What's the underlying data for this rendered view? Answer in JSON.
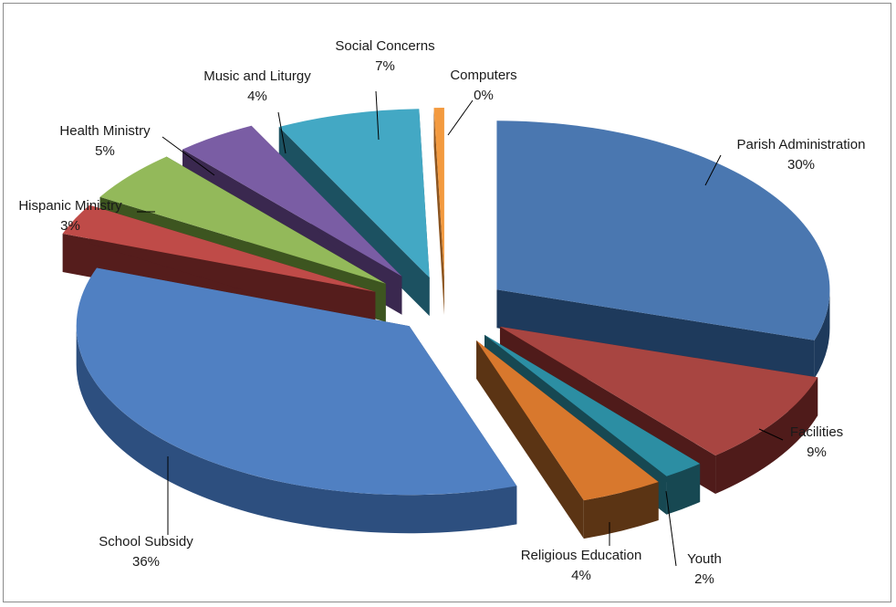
{
  "chart_data": {
    "type": "pie",
    "title": "",
    "legend": "none",
    "slices": [
      {
        "label": "Parish Administration",
        "value": 30,
        "value_label": "30%",
        "color": "#4a77b0",
        "side": "#1e3a5c"
      },
      {
        "label": "Facilities",
        "value": 9,
        "value_label": "9%",
        "color": "#a84541",
        "side": "#4f1b1a"
      },
      {
        "label": "Youth",
        "value": 2,
        "value_label": "2%",
        "color": "#2c8ea3",
        "side": "#174852"
      },
      {
        "label": "Religious Education",
        "value": 4,
        "value_label": "4%",
        "color": "#d8782d",
        "side": "#5b3414"
      },
      {
        "label": "School Subsidy",
        "value": 36,
        "value_label": "36%",
        "color": "#5080c2",
        "side": "#2d4f7f"
      },
      {
        "label": "Hispanic Ministry",
        "value": 3,
        "value_label": "3%",
        "color": "#bf4b48",
        "side": "#551d1c"
      },
      {
        "label": "Health Ministry",
        "value": 5,
        "value_label": "5%",
        "color": "#93b95a",
        "side": "#3d5520"
      },
      {
        "label": "Music and Liturgy",
        "value": 4,
        "value_label": "4%",
        "color": "#7a5da4",
        "side": "#3a284f"
      },
      {
        "label": "Social Concerns",
        "value": 7,
        "value_label": "7%",
        "color": "#43a8c4",
        "side": "#1c5161"
      },
      {
        "label": "Computers",
        "value": 0.5,
        "value_label": "0%",
        "color": "#f39a3f",
        "side": "#8c5520"
      }
    ]
  }
}
